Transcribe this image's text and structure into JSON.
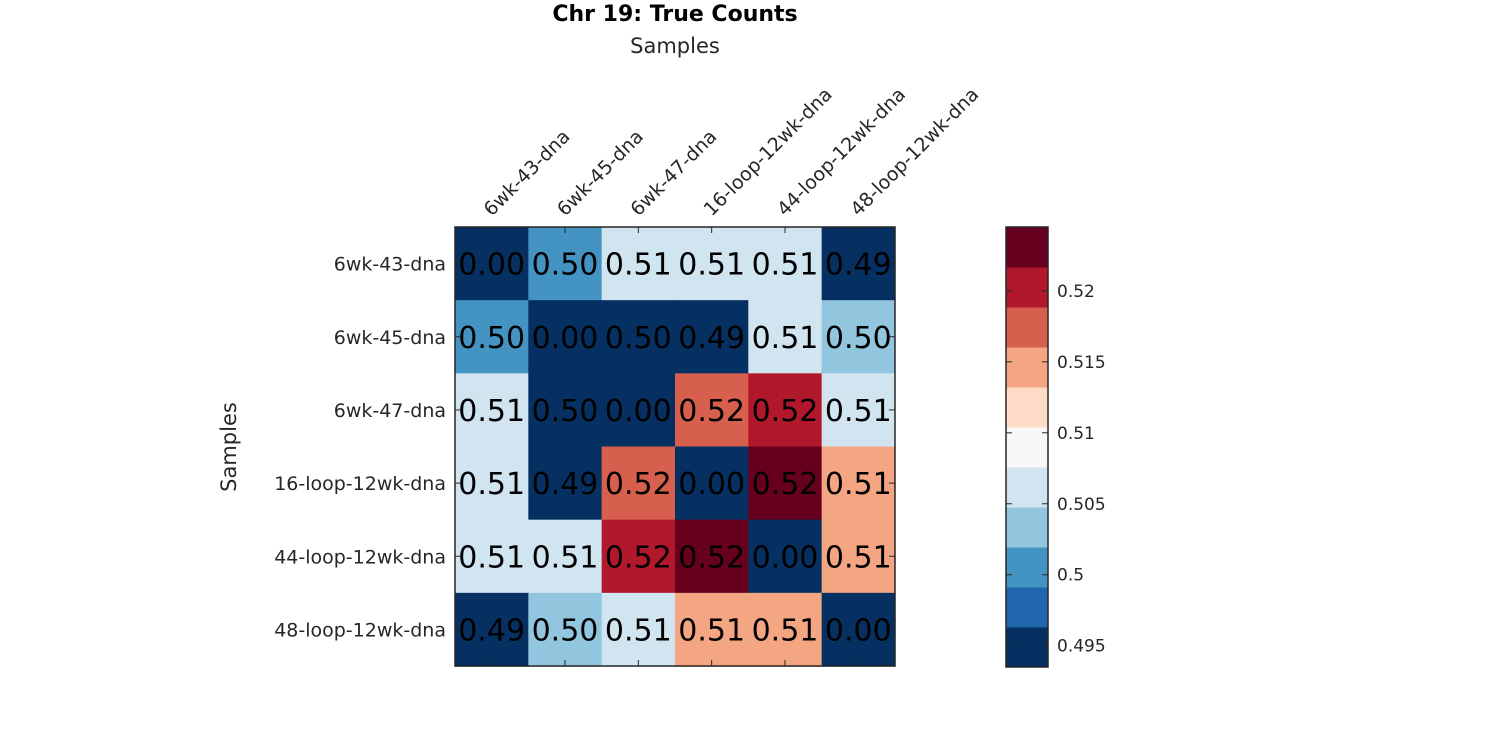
{
  "chart_data": {
    "type": "heatmap",
    "title": "Chr 19: True Counts",
    "xlabel": "Samples",
    "ylabel": "Samples",
    "x_categories": [
      "6wk-43-dna",
      "6wk-45-dna",
      "6wk-47-dna",
      "16-loop-12wk-dna",
      "44-loop-12wk-dna",
      "48-loop-12wk-dna"
    ],
    "y_categories": [
      "6wk-43-dna",
      "6wk-45-dna",
      "6wk-47-dna",
      "16-loop-12wk-dna",
      "44-loop-12wk-dna",
      "48-loop-12wk-dna"
    ],
    "values": [
      [
        0.0,
        0.4995,
        0.5062,
        0.5055,
        0.5065,
        0.494
      ],
      [
        0.4995,
        0.0,
        0.496,
        0.494,
        0.5055,
        0.5025
      ],
      [
        0.5062,
        0.496,
        0.0,
        0.517,
        0.519,
        0.5055
      ],
      [
        0.5055,
        0.494,
        0.517,
        0.0,
        0.523,
        0.514
      ],
      [
        0.5065,
        0.5055,
        0.519,
        0.523,
        0.0,
        0.514
      ],
      [
        0.494,
        0.5025,
        0.5055,
        0.514,
        0.514,
        0.0
      ]
    ],
    "cell_labels": [
      [
        "0.00",
        "0.50",
        "0.51",
        "0.51",
        "0.51",
        "0.49"
      ],
      [
        "0.50",
        "0.00",
        "0.50",
        "0.49",
        "0.51",
        "0.50"
      ],
      [
        "0.51",
        "0.50",
        "0.00",
        "0.52",
        "0.52",
        "0.51"
      ],
      [
        "0.51",
        "0.49",
        "0.52",
        "0.00",
        "0.52",
        "0.51"
      ],
      [
        "0.51",
        "0.51",
        "0.52",
        "0.52",
        "0.00",
        "0.51"
      ],
      [
        "0.49",
        "0.50",
        "0.51",
        "0.51",
        "0.51",
        "0.00"
      ]
    ],
    "x_axis_position": "top",
    "colorbar": {
      "range": [
        0.4935,
        0.5245
      ],
      "colors": [
        "#053061",
        "#2166ac",
        "#4393c3",
        "#92c5de",
        "#d1e5f0",
        "#f7f7f7",
        "#fddbc7",
        "#f4a582",
        "#d6604d",
        "#b2182b",
        "#67001f"
      ],
      "ticks": [
        0.495,
        0.5,
        0.505,
        0.51,
        0.515,
        0.52
      ],
      "tick_labels": [
        "0.495",
        "0.5",
        "0.505",
        "0.51",
        "0.515",
        "0.52"
      ]
    },
    "grid": false,
    "legend": "colorbar-right"
  }
}
